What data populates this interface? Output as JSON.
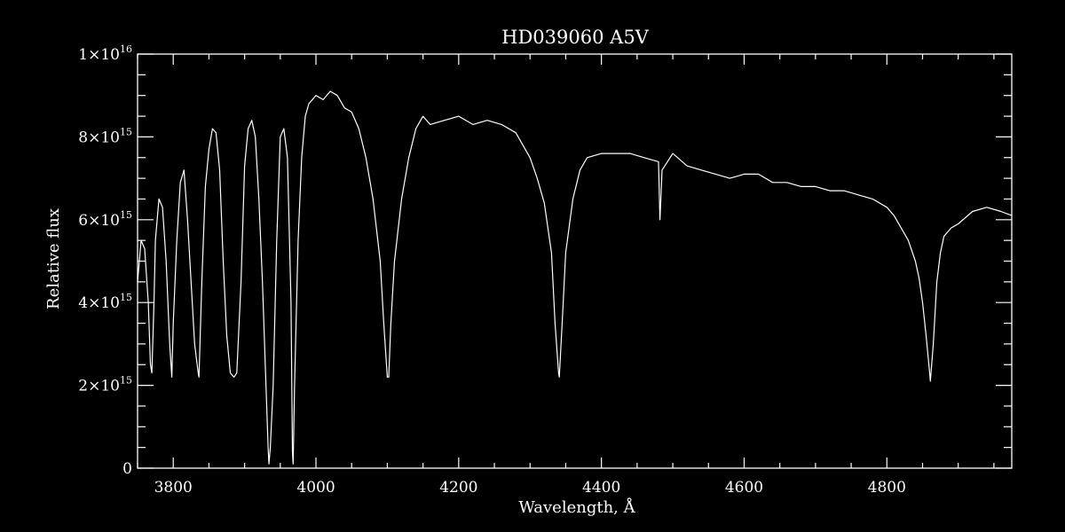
{
  "chart_data": {
    "type": "line",
    "title": "HD039060   A5V",
    "xlabel": "Wavelength, Å",
    "ylabel": "Relative flux",
    "xlim": [
      3750,
      4975
    ],
    "ylim": [
      0,
      1e+16
    ],
    "x_ticks": [
      {
        "value": 3800,
        "label": "3800"
      },
      {
        "value": 4000,
        "label": "4000"
      },
      {
        "value": 4200,
        "label": "4200"
      },
      {
        "value": 4400,
        "label": "4400"
      },
      {
        "value": 4600,
        "label": "4600"
      },
      {
        "value": 4800,
        "label": "4800"
      }
    ],
    "x_minor_step": 50,
    "y_ticks": [
      {
        "value": 0,
        "mantissa": "0",
        "exponent": ""
      },
      {
        "value": 2000000000000000.0,
        "mantissa": "2×10",
        "exponent": "15"
      },
      {
        "value": 4000000000000000.0,
        "mantissa": "4×10",
        "exponent": "15"
      },
      {
        "value": 6000000000000000.0,
        "mantissa": "6×10",
        "exponent": "15"
      },
      {
        "value": 8000000000000000.0,
        "mantissa": "8×10",
        "exponent": "15"
      },
      {
        "value": 1e+16,
        "mantissa": "1×10",
        "exponent": "16"
      }
    ],
    "y_minor_step": 500000000000000.0,
    "line_color": "#ffffff",
    "background": "#000000",
    "series": [
      {
        "values_unit": "1e15",
        "x": [
          3750,
          3755,
          3760,
          3765,
          3768,
          3770,
          3773,
          3775,
          3780,
          3785,
          3790,
          3795,
          3798,
          3800,
          3805,
          3810,
          3815,
          3820,
          3825,
          3830,
          3835,
          3836,
          3840,
          3845,
          3850,
          3855,
          3860,
          3865,
          3870,
          3875,
          3880,
          3885,
          3889,
          3895,
          3900,
          3905,
          3910,
          3915,
          3920,
          3925,
          3930,
          3933,
          3934,
          3936,
          3940,
          3945,
          3950,
          3955,
          3960,
          3965,
          3967,
          3968,
          3970,
          3975,
          3980,
          3985,
          3990,
          4000,
          4010,
          4020,
          4030,
          4040,
          4050,
          4060,
          4070,
          4080,
          4090,
          4095,
          4100,
          4102,
          4105,
          4110,
          4120,
          4130,
          4140,
          4150,
          4160,
          4180,
          4200,
          4220,
          4240,
          4260,
          4280,
          4300,
          4310,
          4320,
          4330,
          4335,
          4340,
          4341,
          4345,
          4350,
          4360,
          4370,
          4380,
          4400,
          4420,
          4440,
          4460,
          4480,
          4482,
          4485,
          4500,
          4520,
          4540,
          4560,
          4580,
          4600,
          4620,
          4640,
          4660,
          4680,
          4700,
          4720,
          4740,
          4760,
          4780,
          4800,
          4810,
          4820,
          4830,
          4840,
          4845,
          4850,
          4855,
          4860,
          4861,
          4865,
          4870,
          4875,
          4880,
          4890,
          4900,
          4920,
          4940,
          4960,
          4975
        ],
        "y": [
          4.5,
          5.5,
          5.3,
          4.0,
          2.5,
          2.3,
          4.0,
          5.5,
          6.5,
          6.3,
          5.0,
          3.0,
          2.2,
          3.5,
          5.5,
          6.9,
          7.2,
          6.0,
          4.5,
          3.0,
          2.3,
          2.2,
          4.5,
          6.8,
          7.7,
          8.2,
          8.1,
          7.2,
          5.0,
          3.2,
          2.3,
          2.2,
          2.3,
          4.5,
          7.3,
          8.2,
          8.4,
          8.0,
          6.5,
          4.5,
          2.0,
          0.5,
          0.1,
          0.5,
          2.0,
          5.5,
          8.0,
          8.2,
          7.5,
          4.0,
          0.4,
          0.1,
          2.0,
          5.5,
          7.5,
          8.5,
          8.8,
          9.0,
          8.9,
          9.1,
          9.0,
          8.7,
          8.6,
          8.2,
          7.5,
          6.5,
          5.0,
          3.5,
          2.2,
          2.2,
          3.5,
          5.0,
          6.5,
          7.5,
          8.2,
          8.5,
          8.3,
          8.4,
          8.5,
          8.3,
          8.4,
          8.3,
          8.1,
          7.5,
          7.0,
          6.4,
          5.2,
          3.5,
          2.3,
          2.2,
          3.5,
          5.2,
          6.5,
          7.2,
          7.5,
          7.6,
          7.6,
          7.6,
          7.5,
          7.4,
          6.0,
          7.2,
          7.6,
          7.3,
          7.2,
          7.1,
          7.0,
          7.1,
          7.1,
          6.9,
          6.9,
          6.8,
          6.8,
          6.7,
          6.7,
          6.6,
          6.5,
          6.3,
          6.1,
          5.8,
          5.5,
          5.0,
          4.6,
          4.0,
          3.2,
          2.3,
          2.1,
          3.0,
          4.5,
          5.2,
          5.6,
          5.8,
          5.9,
          6.2,
          6.3,
          6.2,
          6.1
        ]
      }
    ]
  }
}
